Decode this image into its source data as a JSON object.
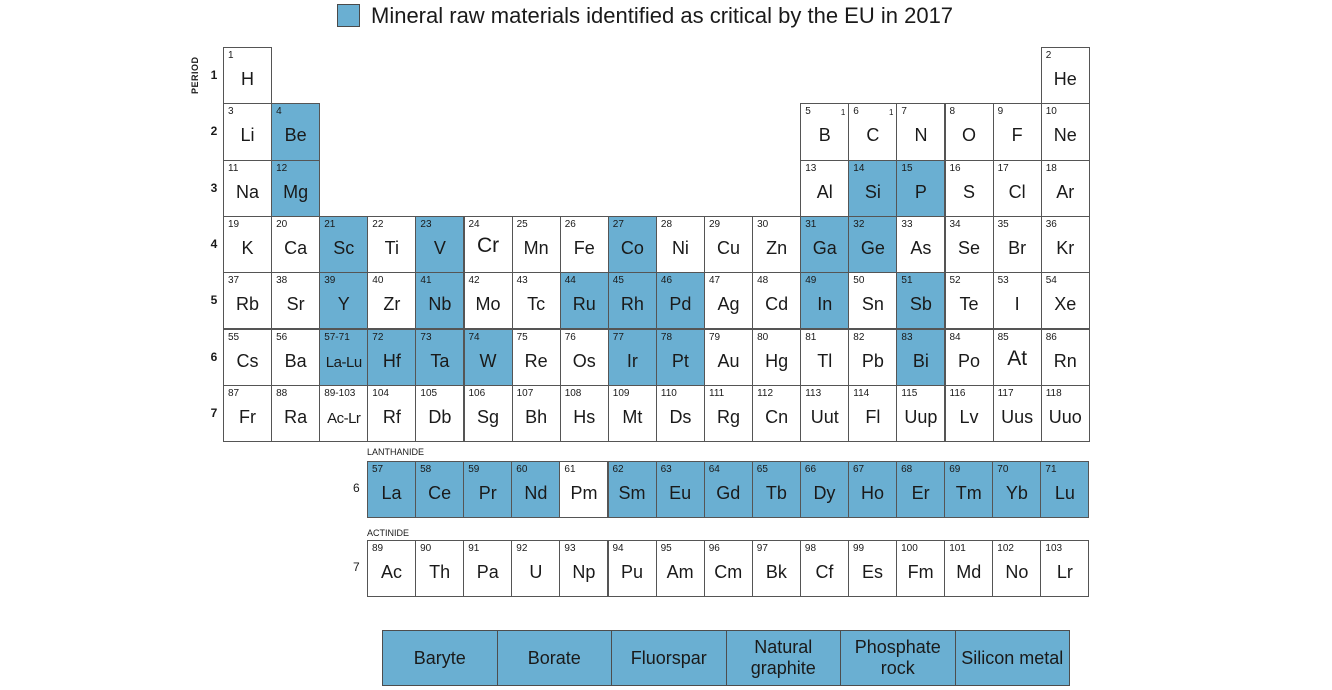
{
  "legend": {
    "label": "Mineral raw materials identified as critical by the EU in 2017",
    "color": "#6aafd2"
  },
  "period_axis_title": "PERIOD",
  "period_numbers": [
    "1",
    "2",
    "3",
    "4",
    "5",
    "6",
    "7"
  ],
  "lanthanide_label": "LANTHANIDE",
  "actinide_label": "ACTINIDE",
  "lanthanide_period": "6",
  "actinide_period": "7",
  "elements": [
    {
      "n": "1",
      "s": "H",
      "p": 1,
      "g": 1,
      "c": false
    },
    {
      "n": "2",
      "s": "He",
      "p": 1,
      "g": 18,
      "c": false
    },
    {
      "n": "3",
      "s": "Li",
      "p": 2,
      "g": 1,
      "c": false
    },
    {
      "n": "4",
      "s": "Be",
      "p": 2,
      "g": 2,
      "c": true
    },
    {
      "n": "5",
      "s": "B",
      "p": 2,
      "g": 13,
      "c": false,
      "sup": "1"
    },
    {
      "n": "6",
      "s": "C",
      "p": 2,
      "g": 14,
      "c": false,
      "sup": "1"
    },
    {
      "n": "7",
      "s": "N",
      "p": 2,
      "g": 15,
      "c": false
    },
    {
      "n": "8",
      "s": "O",
      "p": 2,
      "g": 16,
      "c": false
    },
    {
      "n": "9",
      "s": "F",
      "p": 2,
      "g": 17,
      "c": false
    },
    {
      "n": "10",
      "s": "Ne",
      "p": 2,
      "g": 18,
      "c": false
    },
    {
      "n": "11",
      "s": "Na",
      "p": 3,
      "g": 1,
      "c": false
    },
    {
      "n": "12",
      "s": "Mg",
      "p": 3,
      "g": 2,
      "c": true
    },
    {
      "n": "13",
      "s": "Al",
      "p": 3,
      "g": 13,
      "c": false
    },
    {
      "n": "14",
      "s": "Si",
      "p": 3,
      "g": 14,
      "c": true
    },
    {
      "n": "15",
      "s": "P",
      "p": 3,
      "g": 15,
      "c": true
    },
    {
      "n": "16",
      "s": "S",
      "p": 3,
      "g": 16,
      "c": false
    },
    {
      "n": "17",
      "s": "Cl",
      "p": 3,
      "g": 17,
      "c": false
    },
    {
      "n": "18",
      "s": "Ar",
      "p": 3,
      "g": 18,
      "c": false
    },
    {
      "n": "19",
      "s": "K",
      "p": 4,
      "g": 1,
      "c": false
    },
    {
      "n": "20",
      "s": "Ca",
      "p": 4,
      "g": 2,
      "c": false
    },
    {
      "n": "21",
      "s": "Sc",
      "p": 4,
      "g": 3,
      "c": true
    },
    {
      "n": "22",
      "s": "Ti",
      "p": 4,
      "g": 4,
      "c": false
    },
    {
      "n": "23",
      "s": "V",
      "p": 4,
      "g": 5,
      "c": true
    },
    {
      "n": "24",
      "s": "Cr",
      "p": 4,
      "g": 6,
      "c": false,
      "large": true
    },
    {
      "n": "25",
      "s": "Mn",
      "p": 4,
      "g": 7,
      "c": false
    },
    {
      "n": "26",
      "s": "Fe",
      "p": 4,
      "g": 8,
      "c": false
    },
    {
      "n": "27",
      "s": "Co",
      "p": 4,
      "g": 9,
      "c": true
    },
    {
      "n": "28",
      "s": "Ni",
      "p": 4,
      "g": 10,
      "c": false
    },
    {
      "n": "29",
      "s": "Cu",
      "p": 4,
      "g": 11,
      "c": false
    },
    {
      "n": "30",
      "s": "Zn",
      "p": 4,
      "g": 12,
      "c": false
    },
    {
      "n": "31",
      "s": "Ga",
      "p": 4,
      "g": 13,
      "c": true
    },
    {
      "n": "32",
      "s": "Ge",
      "p": 4,
      "g": 14,
      "c": true
    },
    {
      "n": "33",
      "s": "As",
      "p": 4,
      "g": 15,
      "c": false
    },
    {
      "n": "34",
      "s": "Se",
      "p": 4,
      "g": 16,
      "c": false
    },
    {
      "n": "35",
      "s": "Br",
      "p": 4,
      "g": 17,
      "c": false
    },
    {
      "n": "36",
      "s": "Kr",
      "p": 4,
      "g": 18,
      "c": false
    },
    {
      "n": "37",
      "s": "Rb",
      "p": 5,
      "g": 1,
      "c": false
    },
    {
      "n": "38",
      "s": "Sr",
      "p": 5,
      "g": 2,
      "c": false
    },
    {
      "n": "39",
      "s": "Y",
      "p": 5,
      "g": 3,
      "c": true
    },
    {
      "n": "40",
      "s": "Zr",
      "p": 5,
      "g": 4,
      "c": false
    },
    {
      "n": "41",
      "s": "Nb",
      "p": 5,
      "g": 5,
      "c": true
    },
    {
      "n": "42",
      "s": "Mo",
      "p": 5,
      "g": 6,
      "c": false
    },
    {
      "n": "43",
      "s": "Tc",
      "p": 5,
      "g": 7,
      "c": false
    },
    {
      "n": "44",
      "s": "Ru",
      "p": 5,
      "g": 8,
      "c": true
    },
    {
      "n": "45",
      "s": "Rh",
      "p": 5,
      "g": 9,
      "c": true
    },
    {
      "n": "46",
      "s": "Pd",
      "p": 5,
      "g": 10,
      "c": true
    },
    {
      "n": "47",
      "s": "Ag",
      "p": 5,
      "g": 11,
      "c": false
    },
    {
      "n": "48",
      "s": "Cd",
      "p": 5,
      "g": 12,
      "c": false
    },
    {
      "n": "49",
      "s": "In",
      "p": 5,
      "g": 13,
      "c": true
    },
    {
      "n": "50",
      "s": "Sn",
      "p": 5,
      "g": 14,
      "c": false
    },
    {
      "n": "51",
      "s": "Sb",
      "p": 5,
      "g": 15,
      "c": true
    },
    {
      "n": "52",
      "s": "Te",
      "p": 5,
      "g": 16,
      "c": false
    },
    {
      "n": "53",
      "s": "I",
      "p": 5,
      "g": 17,
      "c": false
    },
    {
      "n": "54",
      "s": "Xe",
      "p": 5,
      "g": 18,
      "c": false
    },
    {
      "n": "55",
      "s": "Cs",
      "p": 6,
      "g": 1,
      "c": false
    },
    {
      "n": "56",
      "s": "Ba",
      "p": 6,
      "g": 2,
      "c": false
    },
    {
      "n": "57-71",
      "s": "La-Lu",
      "p": 6,
      "g": 3,
      "c": true,
      "narrow": true
    },
    {
      "n": "72",
      "s": "Hf",
      "p": 6,
      "g": 4,
      "c": true
    },
    {
      "n": "73",
      "s": "Ta",
      "p": 6,
      "g": 5,
      "c": true
    },
    {
      "n": "74",
      "s": "W",
      "p": 6,
      "g": 6,
      "c": true
    },
    {
      "n": "75",
      "s": "Re",
      "p": 6,
      "g": 7,
      "c": false
    },
    {
      "n": "76",
      "s": "Os",
      "p": 6,
      "g": 8,
      "c": false
    },
    {
      "n": "77",
      "s": "Ir",
      "p": 6,
      "g": 9,
      "c": true
    },
    {
      "n": "78",
      "s": "Pt",
      "p": 6,
      "g": 10,
      "c": true
    },
    {
      "n": "79",
      "s": "Au",
      "p": 6,
      "g": 11,
      "c": false
    },
    {
      "n": "80",
      "s": "Hg",
      "p": 6,
      "g": 12,
      "c": false
    },
    {
      "n": "81",
      "s": "Tl",
      "p": 6,
      "g": 13,
      "c": false
    },
    {
      "n": "82",
      "s": "Pb",
      "p": 6,
      "g": 14,
      "c": false
    },
    {
      "n": "83",
      "s": "Bi",
      "p": 6,
      "g": 15,
      "c": true
    },
    {
      "n": "84",
      "s": "Po",
      "p": 6,
      "g": 16,
      "c": false
    },
    {
      "n": "85",
      "s": "At",
      "p": 6,
      "g": 17,
      "c": false,
      "large": true
    },
    {
      "n": "86",
      "s": "Rn",
      "p": 6,
      "g": 18,
      "c": false
    },
    {
      "n": "87",
      "s": "Fr",
      "p": 7,
      "g": 1,
      "c": false
    },
    {
      "n": "88",
      "s": "Ra",
      "p": 7,
      "g": 2,
      "c": false
    },
    {
      "n": "89-103",
      "s": "Ac-Lr",
      "p": 7,
      "g": 3,
      "c": false,
      "narrow": true
    },
    {
      "n": "104",
      "s": "Rf",
      "p": 7,
      "g": 4,
      "c": false
    },
    {
      "n": "105",
      "s": "Db",
      "p": 7,
      "g": 5,
      "c": false
    },
    {
      "n": "106",
      "s": "Sg",
      "p": 7,
      "g": 6,
      "c": false
    },
    {
      "n": "107",
      "s": "Bh",
      "p": 7,
      "g": 7,
      "c": false
    },
    {
      "n": "108",
      "s": "Hs",
      "p": 7,
      "g": 8,
      "c": false
    },
    {
      "n": "109",
      "s": "Mt",
      "p": 7,
      "g": 9,
      "c": false
    },
    {
      "n": "110",
      "s": "Ds",
      "p": 7,
      "g": 10,
      "c": false
    },
    {
      "n": "111",
      "s": "Rg",
      "p": 7,
      "g": 11,
      "c": false
    },
    {
      "n": "112",
      "s": "Cn",
      "p": 7,
      "g": 12,
      "c": false
    },
    {
      "n": "113",
      "s": "Uut",
      "p": 7,
      "g": 13,
      "c": false
    },
    {
      "n": "114",
      "s": "Fl",
      "p": 7,
      "g": 14,
      "c": false
    },
    {
      "n": "115",
      "s": "Uup",
      "p": 7,
      "g": 15,
      "c": false
    },
    {
      "n": "116",
      "s": "Lv",
      "p": 7,
      "g": 16,
      "c": false
    },
    {
      "n": "117",
      "s": "Uus",
      "p": 7,
      "g": 17,
      "c": false
    },
    {
      "n": "118",
      "s": "Uuo",
      "p": 7,
      "g": 18,
      "c": false
    }
  ],
  "lanthanides": [
    {
      "n": "57",
      "s": "La",
      "c": true
    },
    {
      "n": "58",
      "s": "Ce",
      "c": true
    },
    {
      "n": "59",
      "s": "Pr",
      "c": true
    },
    {
      "n": "60",
      "s": "Nd",
      "c": true
    },
    {
      "n": "61",
      "s": "Pm",
      "c": false
    },
    {
      "n": "62",
      "s": "Sm",
      "c": true
    },
    {
      "n": "63",
      "s": "Eu",
      "c": true
    },
    {
      "n": "64",
      "s": "Gd",
      "c": true
    },
    {
      "n": "65",
      "s": "Tb",
      "c": true
    },
    {
      "n": "66",
      "s": "Dy",
      "c": true
    },
    {
      "n": "67",
      "s": "Ho",
      "c": true
    },
    {
      "n": "68",
      "s": "Er",
      "c": true
    },
    {
      "n": "69",
      "s": "Tm",
      "c": true
    },
    {
      "n": "70",
      "s": "Yb",
      "c": true
    },
    {
      "n": "71",
      "s": "Lu",
      "c": true
    }
  ],
  "actinides": [
    {
      "n": "89",
      "s": "Ac",
      "c": false
    },
    {
      "n": "90",
      "s": "Th",
      "c": false
    },
    {
      "n": "91",
      "s": "Pa",
      "c": false
    },
    {
      "n": "92",
      "s": "U",
      "c": false
    },
    {
      "n": "93",
      "s": "Np",
      "c": false
    },
    {
      "n": "94",
      "s": "Pu",
      "c": false
    },
    {
      "n": "95",
      "s": "Am",
      "c": false
    },
    {
      "n": "96",
      "s": "Cm",
      "c": false
    },
    {
      "n": "97",
      "s": "Bk",
      "c": false
    },
    {
      "n": "98",
      "s": "Cf",
      "c": false
    },
    {
      "n": "99",
      "s": "Es",
      "c": false
    },
    {
      "n": "100",
      "s": "Fm",
      "c": false
    },
    {
      "n": "101",
      "s": "Md",
      "c": false
    },
    {
      "n": "102",
      "s": "No",
      "c": false
    },
    {
      "n": "103",
      "s": "Lr",
      "c": false
    }
  ],
  "industrial_materials": [
    "Baryte",
    "Borate",
    "Fluorspar",
    "Natural graphite",
    "Phosphate rock",
    "Silicon metal"
  ]
}
